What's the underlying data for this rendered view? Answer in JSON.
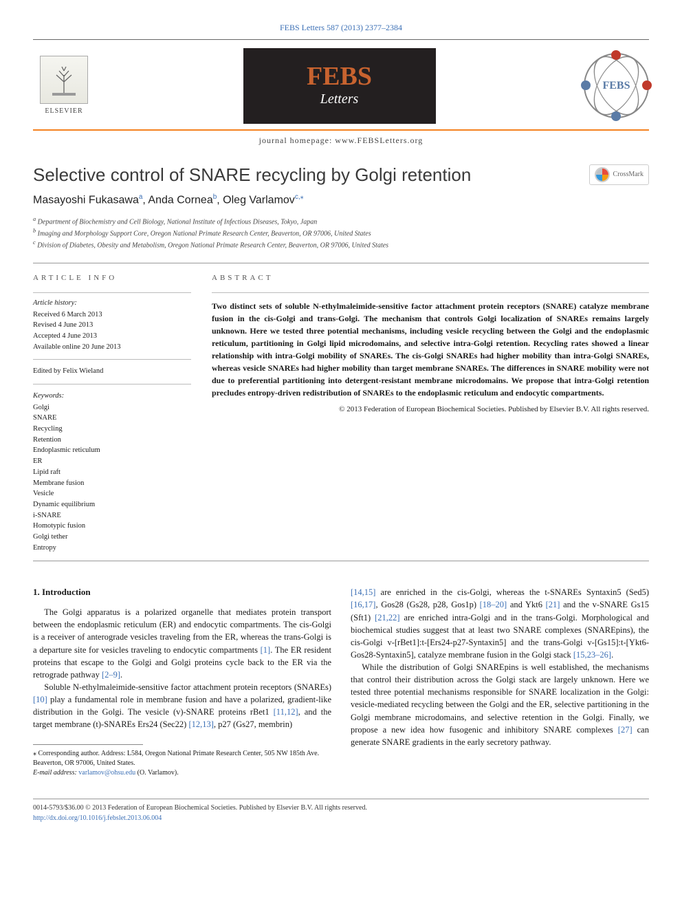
{
  "journal_ref": "FEBS Letters 587 (2013) 2377–2384",
  "header": {
    "elsevier_label": "ELSEVIER",
    "febs_big": "FEBS",
    "febs_sub": "Letters",
    "homepage_text": "journal homepage: www.FEBSLetters.org",
    "febs_right_text": "FEBS",
    "febs_colors": {
      "orbit": "#888888",
      "dots": [
        "#c0392b",
        "#c0392b",
        "#5a7ba6",
        "#5a7ba6"
      ],
      "highlight_orange": "#f58220",
      "febs_orange": "#c8632f",
      "panel_bg": "#231f20"
    }
  },
  "article": {
    "title": "Selective control of SNARE recycling by Golgi retention",
    "crossmark_label": "CrossMark",
    "authors_html": "Masayoshi Fukasawa",
    "author_list": [
      {
        "name": "Masayoshi Fukasawa",
        "sup": "a"
      },
      {
        "name": "Anda Cornea",
        "sup": "b"
      },
      {
        "name": "Oleg Varlamov",
        "sup": "c,",
        "star": "⁎"
      }
    ],
    "affiliations": [
      "Department of Biochemistry and Cell Biology, National Institute of Infectious Diseases, Tokyo, Japan",
      "Imaging and Morphology Support Core, Oregon National Primate Research Center, Beaverton, OR 97006, United States",
      "Division of Diabetes, Obesity and Metabolism, Oregon National Primate Research Center, Beaverton, OR 97006, United States"
    ],
    "aff_sup": [
      "a",
      "b",
      "c"
    ]
  },
  "article_info": {
    "heading": "ARTICLE INFO",
    "history_label": "Article history:",
    "history": [
      "Received 6 March 2013",
      "Revised 4 June 2013",
      "Accepted 4 June 2013",
      "Available online 20 June 2013"
    ],
    "edited_by": "Edited by Felix Wieland",
    "keywords_label": "Keywords:",
    "keywords": [
      "Golgi",
      "SNARE",
      "Recycling",
      "Retention",
      "Endoplasmic reticulum",
      "ER",
      "Lipid raft",
      "Membrane fusion",
      "Vesicle",
      "Dynamic equilibrium",
      "i-SNARE",
      "Homotypic fusion",
      "Golgi tether",
      "Entropy"
    ]
  },
  "abstract": {
    "heading": "ABSTRACT",
    "body": "Two distinct sets of soluble N-ethylmaleimide-sensitive factor attachment protein receptors (SNARE) catalyze membrane fusion in the cis-Golgi and trans-Golgi. The mechanism that controls Golgi localization of SNAREs remains largely unknown. Here we tested three potential mechanisms, including vesicle recycling between the Golgi and the endoplasmic reticulum, partitioning in Golgi lipid microdomains, and selective intra-Golgi retention. Recycling rates showed a linear relationship with intra-Golgi mobility of SNAREs. The cis-Golgi SNAREs had higher mobility than intra-Golgi SNAREs, whereas vesicle SNAREs had higher mobility than target membrane SNAREs. The differences in SNARE mobility were not due to preferential partitioning into detergent-resistant membrane microdomains. We propose that intra-Golgi retention precludes entropy-driven redistribution of SNAREs to the endoplasmic reticulum and endocytic compartments.",
    "copyright": "© 2013 Federation of European Biochemical Societies. Published by Elsevier B.V. All rights reserved."
  },
  "body": {
    "intro_heading": "1. Introduction",
    "p1": "The Golgi apparatus is a polarized organelle that mediates protein transport between the endoplasmic reticulum (ER) and endocytic compartments. The cis-Golgi is a receiver of anterograde vesicles traveling from the ER, whereas the trans-Golgi is a departure site for vesicles traveling to endocytic compartments [1]. The ER resident proteins that escape to the Golgi and Golgi proteins cycle back to the ER via the retrograde pathway [2–9].",
    "p2": "Soluble N-ethylmaleimide-sensitive factor attachment protein receptors (SNAREs) [10] play a fundamental role in membrane fusion and have a polarized, gradient-like distribution in the Golgi. The vesicle (v)-SNARE proteins rBet1 [11,12], and the target membrane (t)-SNAREs Ers24 (Sec22) [12,13], p27 (Gs27, membrin)",
    "p3": "[14,15] are enriched in the cis-Golgi, whereas the t-SNAREs Syntaxin5 (Sed5) [16,17], Gos28 (Gs28, p28, Gos1p) [18–20] and Ykt6 [21] and the v-SNARE Gs15 (Sft1) [21,22] are enriched intra-Golgi and in the trans-Golgi. Morphological and biochemical studies suggest that at least two SNARE complexes (SNAREpins), the cis-Golgi v-[rBet1]:t-[Ers24-p27-Syntaxin5] and the trans-Golgi v-[Gs15]:t-[Ykt6-Gos28-Syntaxin5], catalyze membrane fusion in the Golgi stack [15,23–26].",
    "p4": "While the distribution of Golgi SNAREpins is well established, the mechanisms that control their distribution across the Golgi stack are largely unknown. Here we tested three potential mechanisms responsible for SNARE localization in the Golgi: vesicle-mediated recycling between the Golgi and the ER, selective partitioning in the Golgi membrane microdomains, and selective retention in the Golgi. Finally, we propose a new idea how fusogenic and inhibitory SNARE complexes [27] can generate SNARE gradients in the early secretory pathway."
  },
  "footnote": {
    "star": "⁎",
    "text": "Corresponding author. Address: L584, Oregon National Primate Research Center, 505 NW 185th Ave. Beaverton, OR 97006, United States.",
    "email_label": "E-mail address:",
    "email": "varlamov@ohsu.edu",
    "email_author": "(O. Varlamov)."
  },
  "footer": {
    "line1": "0014-5793/$36.00 © 2013 Federation of European Biochemical Societies. Published by Elsevier B.V. All rights reserved.",
    "doi": "http://dx.doi.org/10.1016/j.febslet.2013.06.004"
  },
  "colors": {
    "link": "#3b6fb5",
    "rule": "#999999",
    "text": "#1a1a1a"
  }
}
